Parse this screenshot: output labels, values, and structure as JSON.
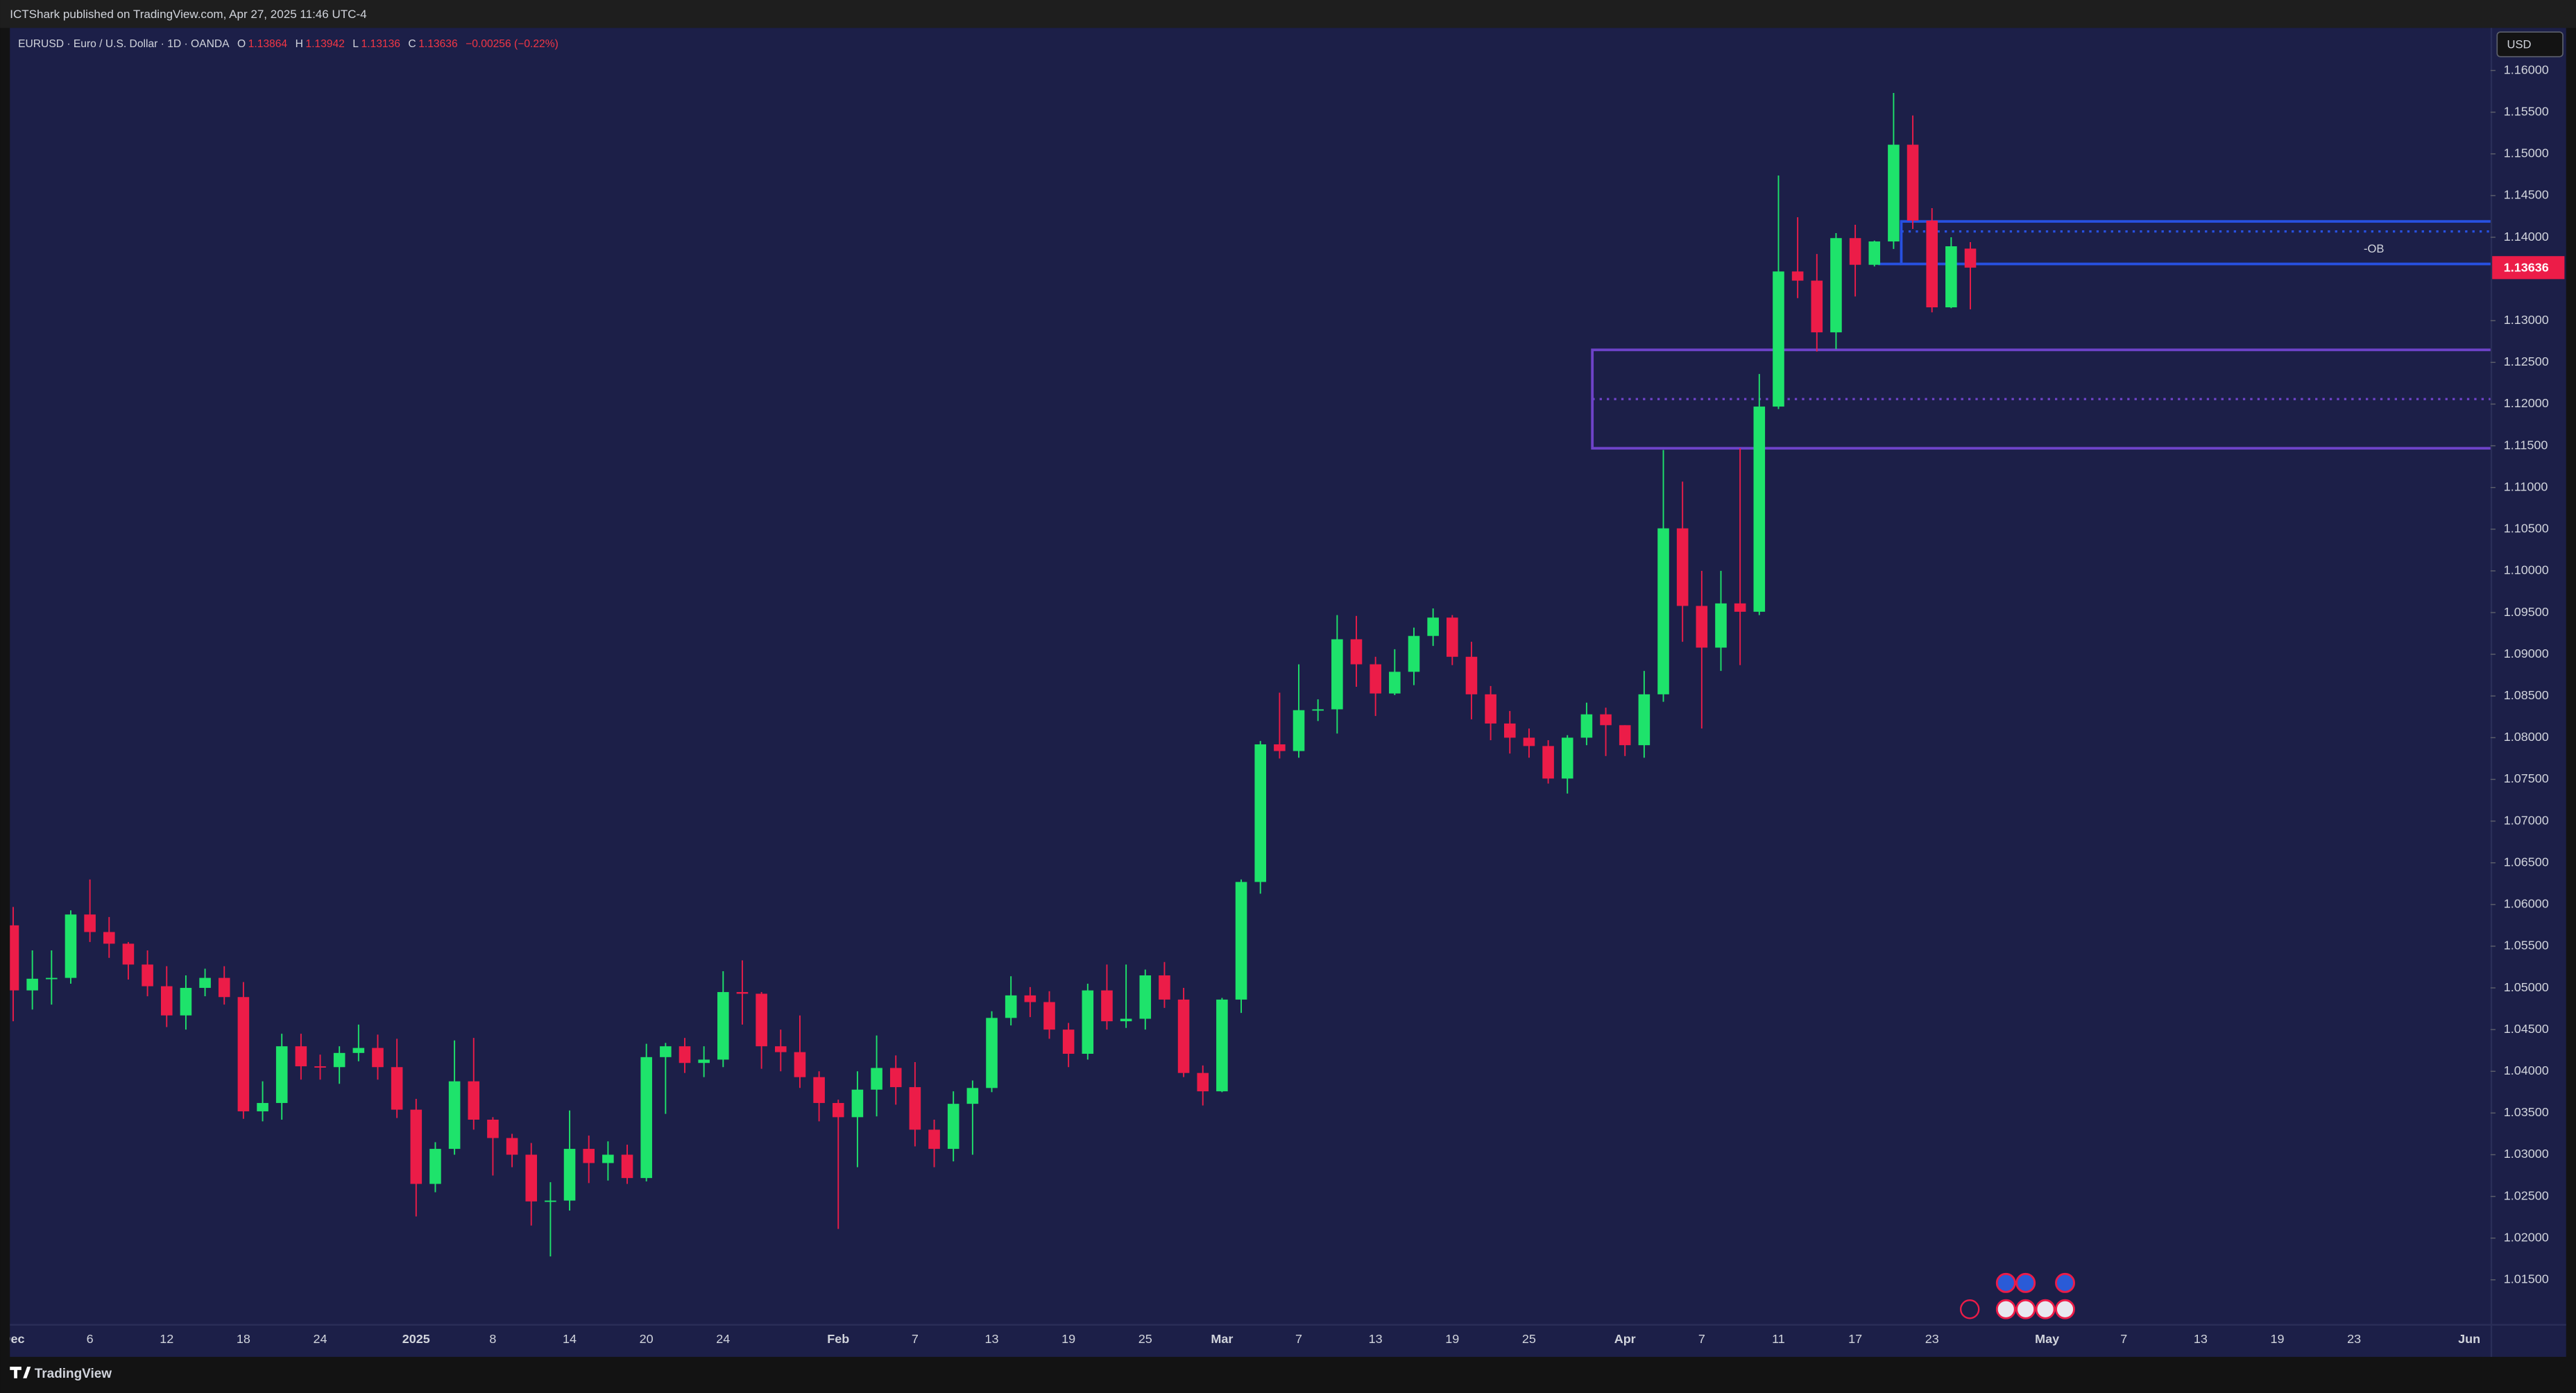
{
  "header": {
    "published": "ICTShark published on TradingView.com, Apr 27, 2025 11:46 UTC-4"
  },
  "footer": {
    "brand": "TradingView"
  },
  "chart_data": {
    "type": "candlestick",
    "symbol": "EURUSD · Euro / U.S. Dollar · 1D · OANDA",
    "legend_labels": [
      "O",
      "H",
      "L",
      "C"
    ],
    "change_label": "−0.00256 (−0.22%)",
    "currency": "USD",
    "up_color": "#1ee36b",
    "down_color": "#ec1c48",
    "categories": [
      "Dec",
      null,
      null,
      null,
      "6",
      null,
      null,
      null,
      "12",
      null,
      null,
      null,
      "18",
      null,
      null,
      null,
      "24",
      null,
      null,
      null,
      null,
      "2025",
      null,
      null,
      null,
      "8",
      null,
      null,
      null,
      "14",
      null,
      null,
      null,
      "20",
      null,
      null,
      null,
      "24",
      null,
      null,
      null,
      null,
      null,
      "Feb",
      null,
      null,
      null,
      "7",
      null,
      null,
      null,
      "13",
      null,
      null,
      null,
      "19",
      null,
      null,
      null,
      "25",
      null,
      null,
      null,
      "Mar",
      null,
      null,
      null,
      "7",
      null,
      null,
      null,
      "13",
      null,
      null,
      null,
      "19",
      null,
      null,
      null,
      "25",
      null,
      null,
      null,
      null,
      "Apr",
      null,
      null,
      null,
      "7",
      null,
      null,
      null,
      "11",
      null,
      null,
      null,
      "17",
      null,
      null,
      null,
      "23",
      null,
      null,
      null,
      null,
      null,
      "May",
      null,
      null,
      null,
      "7",
      null,
      null,
      null,
      "13",
      null,
      null,
      null,
      "19",
      null,
      null,
      null,
      "23",
      null,
      null,
      null,
      null,
      null,
      "Jun",
      null
    ],
    "open": [
      1.0575,
      1.0497,
      1.0511,
      1.0512,
      1.0588,
      1.0567,
      1.0553,
      1.0528,
      1.0502,
      1.0467,
      1.05,
      1.0512,
      1.0489,
      1.0352,
      1.0362,
      1.043,
      1.0406,
      1.0405,
      1.0422,
      1.0428,
      1.0405,
      1.0354,
      1.0265,
      1.0307,
      1.0388,
      1.0342,
      1.032,
      1.03,
      1.0244,
      1.0245,
      1.0307,
      1.029,
      1.03,
      1.0272,
      1.0417,
      1.043,
      1.041,
      1.0414,
      1.0495,
      1.0493,
      1.043,
      1.0423,
      1.0393,
      1.0362,
      1.0345,
      1.0378,
      1.0404,
      1.0381,
      1.033,
      1.0307,
      1.0361,
      1.038,
      1.0464,
      1.0491,
      1.0483,
      1.045,
      1.0421,
      1.0497,
      1.046,
      1.0463,
      1.0515,
      1.0486,
      1.0398,
      1.0376,
      1.0486,
      1.0627,
      1.0792,
      1.0784,
      1.0833,
      1.0834,
      1.0918,
      1.0888,
      1.0853,
      1.0879,
      1.0922,
      1.0944,
      1.0897,
      1.0852,
      1.0817,
      1.08,
      1.079,
      1.0751,
      1.08,
      1.0828,
      1.0815,
      1.0791,
      1.0852,
      1.1051,
      1.0958,
      1.0908,
      1.0961,
      1.0951,
      1.1197,
      1.1359,
      1.1348,
      1.1286,
      1.1399,
      1.1367,
      1.1395,
      1.1511,
      1.142,
      1.1316,
      1.13864,
      null,
      null,
      null,
      null,
      null,
      null,
      null,
      null,
      null,
      null,
      null,
      null,
      null,
      null,
      null,
      null,
      null,
      null,
      null,
      null,
      null,
      null,
      null,
      null,
      null,
      null,
      null
    ],
    "high": [
      1.0597,
      1.0545,
      1.0545,
      1.0593,
      1.063,
      1.0585,
      1.0555,
      1.0545,
      1.0526,
      1.0515,
      1.0523,
      1.0526,
      1.0507,
      1.0388,
      1.0445,
      1.0445,
      1.042,
      1.043,
      1.0456,
      1.0444,
      1.0439,
      1.0367,
      1.0315,
      1.0437,
      1.044,
      1.0345,
      1.0325,
      1.0314,
      1.0267,
      1.0353,
      1.0323,
      1.0316,
      1.0312,
      1.0433,
      1.0434,
      1.044,
      1.043,
      1.052,
      1.0533,
      1.0495,
      1.045,
      1.0467,
      1.04,
      1.0366,
      1.04,
      1.0443,
      1.0419,
      1.0411,
      1.0342,
      1.0376,
      1.0389,
      1.0472,
      1.0514,
      1.0501,
      1.0496,
      1.0458,
      1.0505,
      1.0528,
      1.0528,
      1.0522,
      1.0531,
      1.05,
      1.0407,
      1.0488,
      1.063,
      1.0796,
      1.0854,
      1.0888,
      1.0846,
      1.0947,
      1.0946,
      1.0897,
      1.0906,
      1.0932,
      1.0955,
      1.0947,
      1.0915,
      1.0862,
      1.0832,
      1.0811,
      1.0797,
      1.0803,
      1.0842,
      1.0836,
      1.0815,
      1.088,
      1.1145,
      1.1107,
      1.1,
      1.1,
      1.1147,
      1.1236,
      1.1474,
      1.1424,
      1.138,
      1.1405,
      1.1415,
      1.1396,
      1.1573,
      1.1546,
      1.1435,
      1.14,
      1.13942,
      null,
      null,
      null,
      null,
      null,
      null,
      null,
      null,
      null,
      null,
      null,
      null,
      null,
      null,
      null,
      null,
      null,
      null,
      null,
      null,
      null,
      null,
      null,
      null,
      null,
      null,
      null
    ],
    "low": [
      1.046,
      1.0474,
      1.048,
      1.0505,
      1.0555,
      1.0536,
      1.051,
      1.049,
      1.0453,
      1.045,
      1.049,
      1.048,
      1.0343,
      1.034,
      1.0342,
      1.039,
      1.039,
      1.0385,
      1.0412,
      1.039,
      1.0344,
      1.0226,
      1.0255,
      1.03,
      1.033,
      1.0275,
      1.0285,
      1.0215,
      1.0178,
      1.0233,
      1.0266,
      1.0269,
      1.0265,
      1.0268,
      1.0349,
      1.0398,
      1.0393,
      1.0405,
      1.0456,
      1.0403,
      1.04,
      1.038,
      1.034,
      1.0211,
      1.0285,
      1.0346,
      1.036,
      1.031,
      1.0285,
      1.0292,
      1.03,
      1.0375,
      1.0455,
      1.0465,
      1.0439,
      1.0405,
      1.0414,
      1.045,
      1.0452,
      1.045,
      1.0476,
      1.0393,
      1.0359,
      1.0375,
      1.047,
      1.0613,
      1.0775,
      1.0776,
      1.082,
      1.0805,
      1.0861,
      1.0826,
      1.0851,
      1.0863,
      1.091,
      1.0887,
      1.0822,
      1.0797,
      1.0781,
      1.0776,
      1.0745,
      1.0733,
      1.0791,
      1.0778,
      1.0778,
      1.0776,
      1.0843,
      1.0915,
      1.0811,
      1.088,
      1.0887,
      1.0947,
      1.1194,
      1.1327,
      1.1263,
      1.1266,
      1.1329,
      1.1365,
      1.1386,
      1.141,
      1.131,
      1.1315,
      1.13136,
      null,
      null,
      null,
      null,
      null,
      null,
      null,
      null,
      null,
      null,
      null,
      null,
      null,
      null,
      null,
      null,
      null,
      null,
      null,
      null,
      null,
      null,
      null,
      null,
      null,
      null,
      null
    ],
    "close": [
      1.0497,
      1.0511,
      1.0512,
      1.0588,
      1.0567,
      1.0553,
      1.0528,
      1.0502,
      1.0467,
      1.05,
      1.0512,
      1.0489,
      1.0352,
      1.0362,
      1.043,
      1.0406,
      1.0405,
      1.0422,
      1.0428,
      1.0405,
      1.0354,
      1.0265,
      1.0307,
      1.0388,
      1.0342,
      1.032,
      1.03,
      1.0244,
      1.0245,
      1.0307,
      1.029,
      1.03,
      1.0272,
      1.0417,
      1.043,
      1.041,
      1.0414,
      1.0495,
      1.0493,
      1.043,
      1.0423,
      1.0393,
      1.0362,
      1.0345,
      1.0378,
      1.0404,
      1.0381,
      1.033,
      1.0307,
      1.0361,
      1.038,
      1.0464,
      1.0491,
      1.0483,
      1.045,
      1.0421,
      1.0497,
      1.046,
      1.0463,
      1.0515,
      1.0486,
      1.0398,
      1.0376,
      1.0486,
      1.0627,
      1.0792,
      1.0784,
      1.0833,
      1.0834,
      1.0918,
      1.0888,
      1.0853,
      1.0879,
      1.0922,
      1.0944,
      1.0897,
      1.0852,
      1.0817,
      1.08,
      1.079,
      1.0751,
      1.08,
      1.0828,
      1.0815,
      1.0791,
      1.0852,
      1.1051,
      1.0958,
      1.0908,
      1.0961,
      1.0951,
      1.1197,
      1.1359,
      1.1348,
      1.1286,
      1.1399,
      1.1367,
      1.1395,
      1.1511,
      1.142,
      1.1316,
      1.13892,
      1.13636,
      null,
      null,
      null,
      null,
      null,
      null,
      null,
      null,
      null,
      null,
      null,
      null,
      null,
      null,
      null,
      null,
      null,
      null,
      null,
      null,
      null,
      null,
      null,
      null,
      null,
      null,
      null
    ],
    "ylim": [
      1.0097,
      1.1651
    ],
    "yticks": [
      {
        "value": 1.015,
        "label": "1.01500"
      },
      {
        "value": 1.02,
        "label": "1.02000"
      },
      {
        "value": 1.025,
        "label": "1.02500"
      },
      {
        "value": 1.03,
        "label": "1.03000"
      },
      {
        "value": 1.035,
        "label": "1.03500"
      },
      {
        "value": 1.04,
        "label": "1.04000"
      },
      {
        "value": 1.045,
        "label": "1.04500"
      },
      {
        "value": 1.05,
        "label": "1.05000"
      },
      {
        "value": 1.055,
        "label": "1.05500"
      },
      {
        "value": 1.06,
        "label": "1.06000"
      },
      {
        "value": 1.065,
        "label": "1.06500"
      },
      {
        "value": 1.07,
        "label": "1.07000"
      },
      {
        "value": 1.075,
        "label": "1.07500"
      },
      {
        "value": 1.08,
        "label": "1.08000"
      },
      {
        "value": 1.085,
        "label": "1.08500"
      },
      {
        "value": 1.09,
        "label": "1.09000"
      },
      {
        "value": 1.095,
        "label": "1.09500"
      },
      {
        "value": 1.1,
        "label": "1.10000"
      },
      {
        "value": 1.105,
        "label": "1.10500"
      },
      {
        "value": 1.11,
        "label": "1.11000"
      },
      {
        "value": 1.115,
        "label": "1.11500"
      },
      {
        "value": 1.12,
        "label": "1.12000"
      },
      {
        "value": 1.125,
        "label": "1.12500"
      },
      {
        "value": 1.13,
        "label": "1.13000"
      },
      {
        "value": 1.14,
        "label": "1.14000"
      },
      {
        "value": 1.145,
        "label": "1.14500"
      },
      {
        "value": 1.15,
        "label": "1.15000"
      },
      {
        "value": 1.155,
        "label": "1.15500"
      },
      {
        "value": 1.16,
        "label": "1.16000"
      }
    ],
    "grid": false,
    "zones": [
      {
        "top": 1.1419,
        "bottom": 1.1368,
        "mid": 1.1407,
        "label": "-OB",
        "color": "#2750e0"
      },
      {
        "top": 1.1265,
        "bottom": 1.1147,
        "mid": 1.1206,
        "color": "#6e43c9"
      }
    ]
  }
}
